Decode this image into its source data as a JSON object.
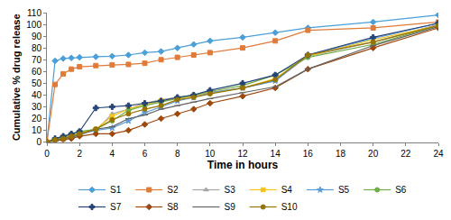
{
  "chart_data": {
    "type": "line",
    "x_label": "Time in hours",
    "y_label": "Cumulative % drug release",
    "x": [
      0,
      0.5,
      1,
      1.5,
      2,
      3,
      4,
      5,
      6,
      7,
      8,
      9,
      10,
      12,
      14,
      16,
      20,
      24
    ],
    "series": [
      {
        "name": "S1",
        "color": "#4a9fd8",
        "marker": "diamond",
        "values": [
          0,
          69,
          71,
          71.5,
          72,
          72.5,
          73,
          74,
          76,
          77,
          80,
          83,
          86,
          89,
          93,
          97,
          102,
          108
        ]
      },
      {
        "name": "S2",
        "color": "#e07b39",
        "marker": "square",
        "values": [
          0,
          49,
          58,
          62,
          64,
          65,
          65.5,
          66,
          67,
          70,
          72,
          74,
          76,
          80,
          86,
          95,
          97,
          102
        ]
      },
      {
        "name": "S3",
        "color": "#a5a5a5",
        "marker": "triangle",
        "values": [
          0,
          2,
          4,
          6,
          8,
          10,
          24,
          28,
          33,
          36,
          38,
          40,
          42,
          46,
          52,
          73,
          85,
          100
        ]
      },
      {
        "name": "S4",
        "color": "#f5c518",
        "marker": "x",
        "values": [
          0,
          2,
          4,
          6,
          8,
          11,
          22,
          28,
          32,
          35,
          37,
          39,
          42,
          46,
          54,
          73,
          87,
          99
        ]
      },
      {
        "name": "S5",
        "color": "#5b9bd5",
        "marker": "star",
        "values": [
          0,
          1,
          3,
          5,
          7,
          10,
          12,
          18,
          25,
          30,
          35,
          38,
          42,
          46,
          52,
          74,
          88,
          101
        ]
      },
      {
        "name": "S6",
        "color": "#70ad47",
        "marker": "circle",
        "values": [
          0,
          2,
          4,
          7,
          9,
          11,
          18,
          27,
          31,
          34,
          37,
          40,
          43,
          48,
          57,
          72,
          83,
          99
        ]
      },
      {
        "name": "S7",
        "color": "#264478",
        "marker": "cross",
        "values": [
          0,
          3,
          5,
          7,
          9,
          29,
          30,
          31,
          33,
          35,
          38,
          40,
          44,
          50,
          57,
          74,
          89,
          101
        ]
      },
      {
        "name": "S8",
        "color": "#9e480e",
        "marker": "diamond",
        "values": [
          0,
          1,
          2,
          3,
          5,
          7,
          7,
          10,
          15,
          20,
          24,
          28,
          33,
          39,
          46,
          62,
          80,
          97
        ]
      },
      {
        "name": "S9",
        "color": "#636363",
        "marker": "dash",
        "values": [
          0,
          1,
          3,
          4,
          6,
          11,
          13,
          20,
          23,
          28,
          31,
          34,
          37,
          42,
          47,
          62,
          82,
          98
        ]
      },
      {
        "name": "S10",
        "color": "#997300",
        "marker": "circle",
        "values": [
          0,
          2,
          3,
          5,
          7,
          11,
          19,
          24,
          28,
          31,
          36,
          38,
          41,
          46,
          53,
          74,
          85,
          99
        ]
      }
    ],
    "xlim": [
      0,
      24
    ],
    "xticks": [
      0,
      2,
      4,
      6,
      8,
      10,
      12,
      14,
      16,
      18,
      20,
      22,
      24
    ],
    "ylim": [
      0,
      110
    ],
    "yticks": [
      0,
      10,
      20,
      30,
      40,
      50,
      60,
      70,
      80,
      90,
      100,
      110
    ],
    "grid": false,
    "legend": "bottom"
  }
}
